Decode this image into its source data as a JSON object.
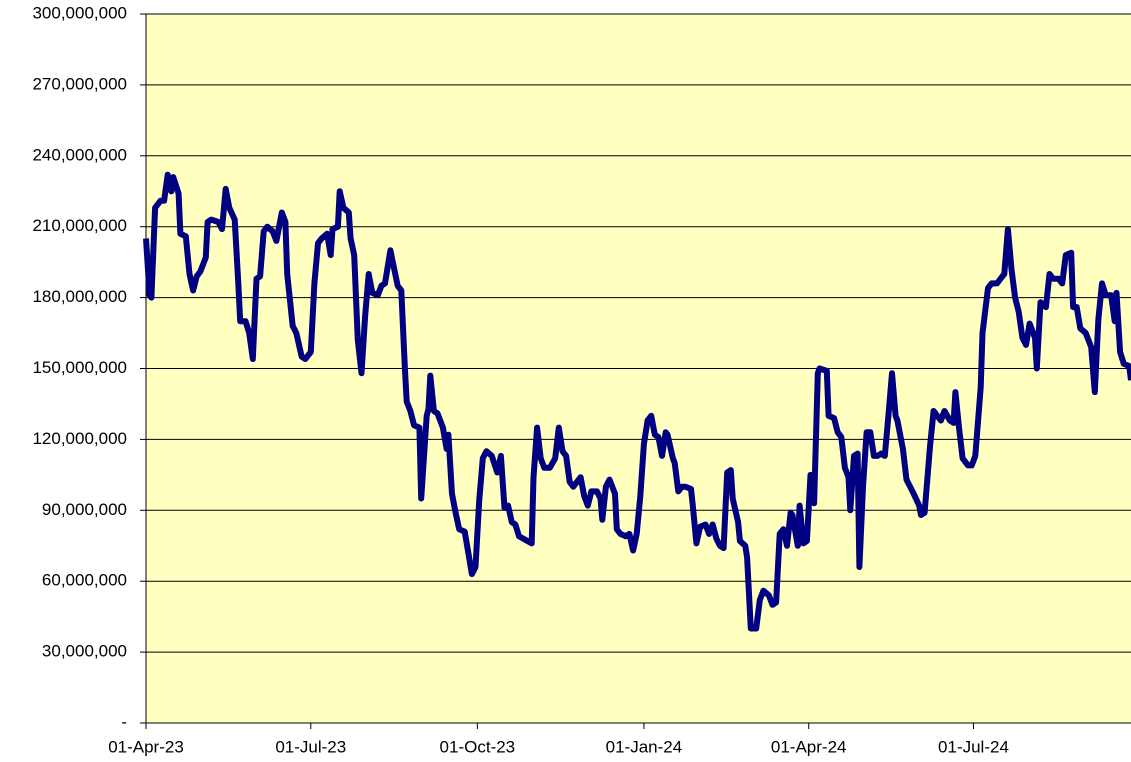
{
  "chart_data": {
    "type": "line",
    "color": "#000080",
    "background": "#ffffc0",
    "grid": true,
    "ylim": [
      0,
      300000000.0
    ],
    "yticks": [
      {
        "value": 0,
        "label": "-"
      },
      {
        "value": 30000000.0,
        "label": "30,000,000"
      },
      {
        "value": 60000000.0,
        "label": "60,000,000"
      },
      {
        "value": 90000000.0,
        "label": "90,000,000"
      },
      {
        "value": 120000000.0,
        "label": "120,000,000"
      },
      {
        "value": 150000000.0,
        "label": "150,000,000"
      },
      {
        "value": 180000000.0,
        "label": "180,000,000"
      },
      {
        "value": 210000000.0,
        "label": "210,000,000"
      },
      {
        "value": 240000000.0,
        "label": "240,000,000"
      },
      {
        "value": 270000000.0,
        "label": "270,000,000"
      },
      {
        "value": 300000000.0,
        "label": "300,000,000"
      }
    ],
    "xlim": [
      "2023-04-01",
      "2024-09-26"
    ],
    "xticks": [
      {
        "value": "2023-04-01",
        "label": "01-Apr-23"
      },
      {
        "value": "2023-07-01",
        "label": "01-Jul-23"
      },
      {
        "value": "2023-10-01",
        "label": "01-Oct-23"
      },
      {
        "value": "2024-01-01",
        "label": "01-Jan-24"
      },
      {
        "value": "2024-04-01",
        "label": "01-Apr-24"
      },
      {
        "value": "2024-07-01",
        "label": "01-Jul-24"
      }
    ],
    "x": [
      "2023-04-01",
      "2023-04-03",
      "2023-04-04",
      "2023-04-06",
      "2023-04-09",
      "2023-04-11",
      "2023-04-13",
      "2023-04-15",
      "2023-04-16",
      "2023-04-19",
      "2023-04-20",
      "2023-04-23",
      "2023-04-25",
      "2023-04-27",
      "2023-04-29",
      "2023-05-01",
      "2023-05-04",
      "2023-05-05",
      "2023-05-07",
      "2023-05-11",
      "2023-05-13",
      "2023-05-15",
      "2023-05-17",
      "2023-05-20",
      "2023-05-22",
      "2023-05-23",
      "2023-05-26",
      "2023-05-28",
      "2023-05-30",
      "2023-06-01",
      "2023-06-03",
      "2023-06-05",
      "2023-06-07",
      "2023-06-10",
      "2023-06-12",
      "2023-06-15",
      "2023-06-17",
      "2023-06-18",
      "2023-06-21",
      "2023-06-23",
      "2023-06-26",
      "2023-06-28",
      "2023-07-01",
      "2023-07-03",
      "2023-07-05",
      "2023-07-07",
      "2023-07-10",
      "2023-07-12",
      "2023-07-13",
      "2023-07-16",
      "2023-07-17",
      "2023-07-19",
      "2023-07-22",
      "2023-07-23",
      "2023-07-25",
      "2023-07-27",
      "2023-07-29",
      "2023-07-31",
      "2023-08-02",
      "2023-08-04",
      "2023-08-07",
      "2023-08-09",
      "2023-08-11",
      "2023-08-14",
      "2023-08-15",
      "2023-08-18",
      "2023-08-20",
      "2023-08-22",
      "2023-08-23",
      "2023-08-25",
      "2023-08-27",
      "2023-08-30",
      "2023-08-31",
      "2023-09-03",
      "2023-09-04",
      "2023-09-05",
      "2023-09-07",
      "2023-09-09",
      "2023-09-12",
      "2023-09-14",
      "2023-09-15",
      "2023-09-17",
      "2023-09-19",
      "2023-09-21",
      "2023-09-24",
      "2023-09-26",
      "2023-09-28",
      "2023-09-30",
      "2023-10-02",
      "2023-10-04",
      "2023-10-06",
      "2023-10-09",
      "2023-10-12",
      "2023-10-14",
      "2023-10-16",
      "2023-10-18",
      "2023-10-20",
      "2023-10-22",
      "2023-10-24",
      "2023-10-31",
      "2023-11-01",
      "2023-11-03",
      "2023-11-05",
      "2023-11-07",
      "2023-11-10",
      "2023-11-13",
      "2023-11-15",
      "2023-11-17",
      "2023-11-19",
      "2023-11-21",
      "2023-11-23",
      "2023-11-27",
      "2023-11-29",
      "2023-12-01",
      "2023-12-03",
      "2023-12-06",
      "2023-12-08",
      "2023-12-09",
      "2023-12-11",
      "2023-12-13",
      "2023-12-16",
      "2023-12-17",
      "2023-12-19",
      "2023-12-22",
      "2023-12-24",
      "2023-12-26",
      "2023-12-28",
      "2023-12-30",
      "2024-01-01",
      "2024-01-03",
      "2024-01-05",
      "2024-01-07",
      "2024-01-09",
      "2024-01-11",
      "2024-01-13",
      "2024-01-14",
      "2024-01-17",
      "2024-01-18",
      "2024-01-20",
      "2024-01-22",
      "2024-01-24",
      "2024-01-27",
      "2024-01-28",
      "2024-01-30",
      "2024-02-01",
      "2024-02-04",
      "2024-02-06",
      "2024-02-08",
      "2024-02-10",
      "2024-02-12",
      "2024-02-14",
      "2024-02-16",
      "2024-02-18",
      "2024-02-19",
      "2024-02-22",
      "2024-02-23",
      "2024-02-26",
      "2024-02-27",
      "2024-02-29",
      "2024-03-03",
      "2024-03-05",
      "2024-03-07",
      "2024-03-10",
      "2024-03-12",
      "2024-03-14",
      "2024-03-16",
      "2024-03-18",
      "2024-03-20",
      "2024-03-22",
      "2024-03-23",
      "2024-03-26",
      "2024-03-27",
      "2024-03-29",
      "2024-03-31",
      "2024-04-02",
      "2024-04-04",
      "2024-04-06",
      "2024-04-07",
      "2024-04-11",
      "2024-04-12",
      "2024-04-15",
      "2024-04-17",
      "2024-04-19",
      "2024-04-21",
      "2024-04-23",
      "2024-04-24",
      "2024-04-26",
      "2024-04-28",
      "2024-04-29",
      "2024-05-01",
      "2024-05-03",
      "2024-05-05",
      "2024-05-07",
      "2024-05-09",
      "2024-05-11",
      "2024-05-13",
      "2024-05-15",
      "2024-05-17",
      "2024-05-19",
      "2024-05-20",
      "2024-05-23",
      "2024-05-25",
      "2024-05-27",
      "2024-05-29",
      "2024-06-01",
      "2024-06-02",
      "2024-06-04",
      "2024-06-07",
      "2024-06-09",
      "2024-06-11",
      "2024-06-13",
      "2024-06-15",
      "2024-06-18",
      "2024-06-20",
      "2024-06-21",
      "2024-06-23",
      "2024-06-25",
      "2024-06-28",
      "2024-06-30",
      "2024-07-02",
      "2024-07-05",
      "2024-07-06",
      "2024-07-09",
      "2024-07-11",
      "2024-07-14",
      "2024-07-16",
      "2024-07-18",
      "2024-07-20",
      "2024-07-22",
      "2024-07-24",
      "2024-07-26",
      "2024-07-28",
      "2024-07-30",
      "2024-08-01",
      "2024-08-04",
      "2024-08-05",
      "2024-08-07",
      "2024-08-10",
      "2024-08-12",
      "2024-08-14",
      "2024-08-17",
      "2024-08-19",
      "2024-08-21",
      "2024-08-24",
      "2024-08-25",
      "2024-08-27",
      "2024-08-29",
      "2024-09-01",
      "2024-09-04",
      "2024-09-06",
      "2024-09-08",
      "2024-09-10",
      "2024-09-12",
      "2024-09-15",
      "2024-09-17",
      "2024-09-18",
      "2024-09-20",
      "2024-09-22",
      "2024-09-25",
      "2024-09-26"
    ],
    "values": [
      205000000.0,
      181000000.0,
      180000000.0,
      218000000.0,
      221000000.0,
      221000000.0,
      232000000.0,
      225000000.0,
      231000000.0,
      224000000.0,
      207000000.0,
      206000000.0,
      190000000.0,
      183000000.0,
      189000000.0,
      191000000.0,
      197000000.0,
      212000000.0,
      213000000.0,
      212000000.0,
      209000000.0,
      226000000.0,
      218000000.0,
      213000000.0,
      186000000.0,
      170000000.0,
      170000000.0,
      165000000.0,
      154000000.0,
      188000000.0,
      189000000.0,
      208000000.0,
      210000000.0,
      208000000.0,
      204000000.0,
      216000000.0,
      212000000.0,
      190000000.0,
      168000000.0,
      165000000.0,
      155000000.0,
      154000000.0,
      157000000.0,
      186000000.0,
      203000000.0,
      205000000.0,
      207000000.0,
      198000000.0,
      209000000.0,
      210000000.0,
      225000000.0,
      218000000.0,
      216000000.0,
      205000000.0,
      198000000.0,
      162000000.0,
      148000000.0,
      172000000.0,
      190000000.0,
      182000000.0,
      181000000.0,
      185000000.0,
      186000000.0,
      200000000.0,
      196000000.0,
      185000000.0,
      183000000.0,
      150000000.0,
      136000000.0,
      132000000.0,
      126000000.0,
      125000000.0,
      95000000.0,
      130000000.0,
      133000000.0,
      147000000.0,
      132000000.0,
      131000000.0,
      125000000.0,
      116000000.0,
      122000000.0,
      97000000.0,
      89000000.0,
      82000000.0,
      81000000.0,
      72000000.0,
      63000000.0,
      66000000.0,
      94000000.0,
      112000000.0,
      115000000.0,
      113000000.0,
      106000000.0,
      113000000.0,
      91000000.0,
      92000000.0,
      85000000.0,
      84000000.0,
      79000000.0,
      76000000.0,
      104000000.0,
      125000000.0,
      112000000.0,
      108000000.0,
      108000000.0,
      112000000.0,
      125000000.0,
      115000000.0,
      113000000.0,
      102000000.0,
      100000000.0,
      104000000.0,
      96000000.0,
      92000000.0,
      98000000.0,
      98000000.0,
      95000000.0,
      86000000.0,
      100000000.0,
      103000000.0,
      97000000.0,
      82000000.0,
      80000000.0,
      79000000.0,
      80000000.0,
      73000000.0,
      80000000.0,
      96000000.0,
      118000000.0,
      128000000.0,
      130000000.0,
      122000000.0,
      121000000.0,
      113000000.0,
      123000000.0,
      122000000.0,
      112000000.0,
      110000000.0,
      98000000.0,
      100000000.0,
      100000000.0,
      99000000.0,
      92000000.0,
      76000000.0,
      83000000.0,
      84000000.0,
      80000000.0,
      84000000.0,
      78000000.0,
      75000000.0,
      74000000.0,
      106000000.0,
      107000000.0,
      95000000.0,
      85000000.0,
      77000000.0,
      75000000.0,
      70000000.0,
      40000000.0,
      40000000.0,
      52000000.0,
      56000000.0,
      54000000.0,
      50000000.0,
      51000000.0,
      80000000.0,
      82000000.0,
      75000000.0,
      89000000.0,
      88000000.0,
      75000000.0,
      92000000.0,
      76000000.0,
      77000000.0,
      105000000.0,
      93000000.0,
      148000000.0,
      150000000.0,
      149000000.0,
      130000000.0,
      129000000.0,
      123000000.0,
      121000000.0,
      108000000.0,
      104000000.0,
      90000000.0,
      113000000.0,
      114000000.0,
      66000000.0,
      100000000.0,
      123000000.0,
      123000000.0,
      113000000.0,
      113000000.0,
      114000000.0,
      113000000.0,
      130000000.0,
      148000000.0,
      130000000.0,
      128000000.0,
      116000000.0,
      103000000.0,
      100000000.0,
      97000000.0,
      92000000.0,
      88000000.0,
      89000000.0,
      117000000.0,
      132000000.0,
      130000000.0,
      128000000.0,
      132000000.0,
      128000000.0,
      127000000.0,
      140000000.0,
      125000000.0,
      112000000.0,
      109000000.0,
      109000000.0,
      113000000.0,
      142000000.0,
      165000000.0,
      184000000.0,
      186000000.0,
      186000000.0,
      188000000.0,
      190000000.0,
      209000000.0,
      192000000.0,
      180000000.0,
      174000000.0,
      163000000.0,
      160000000.0,
      169000000.0,
      163000000.0,
      150000000.0,
      178000000.0,
      176000000.0,
      190000000.0,
      188000000.0,
      188000000.0,
      186000000.0,
      198000000.0,
      199000000.0,
      176000000.0,
      176000000.0,
      167000000.0,
      165000000.0,
      159000000.0,
      140000000.0,
      171000000.0,
      186000000.0,
      181000000.0,
      181000000.0,
      170000000.0,
      182000000.0,
      157000000.0,
      152000000.0,
      151000000.0,
      145000000.0
    ]
  }
}
